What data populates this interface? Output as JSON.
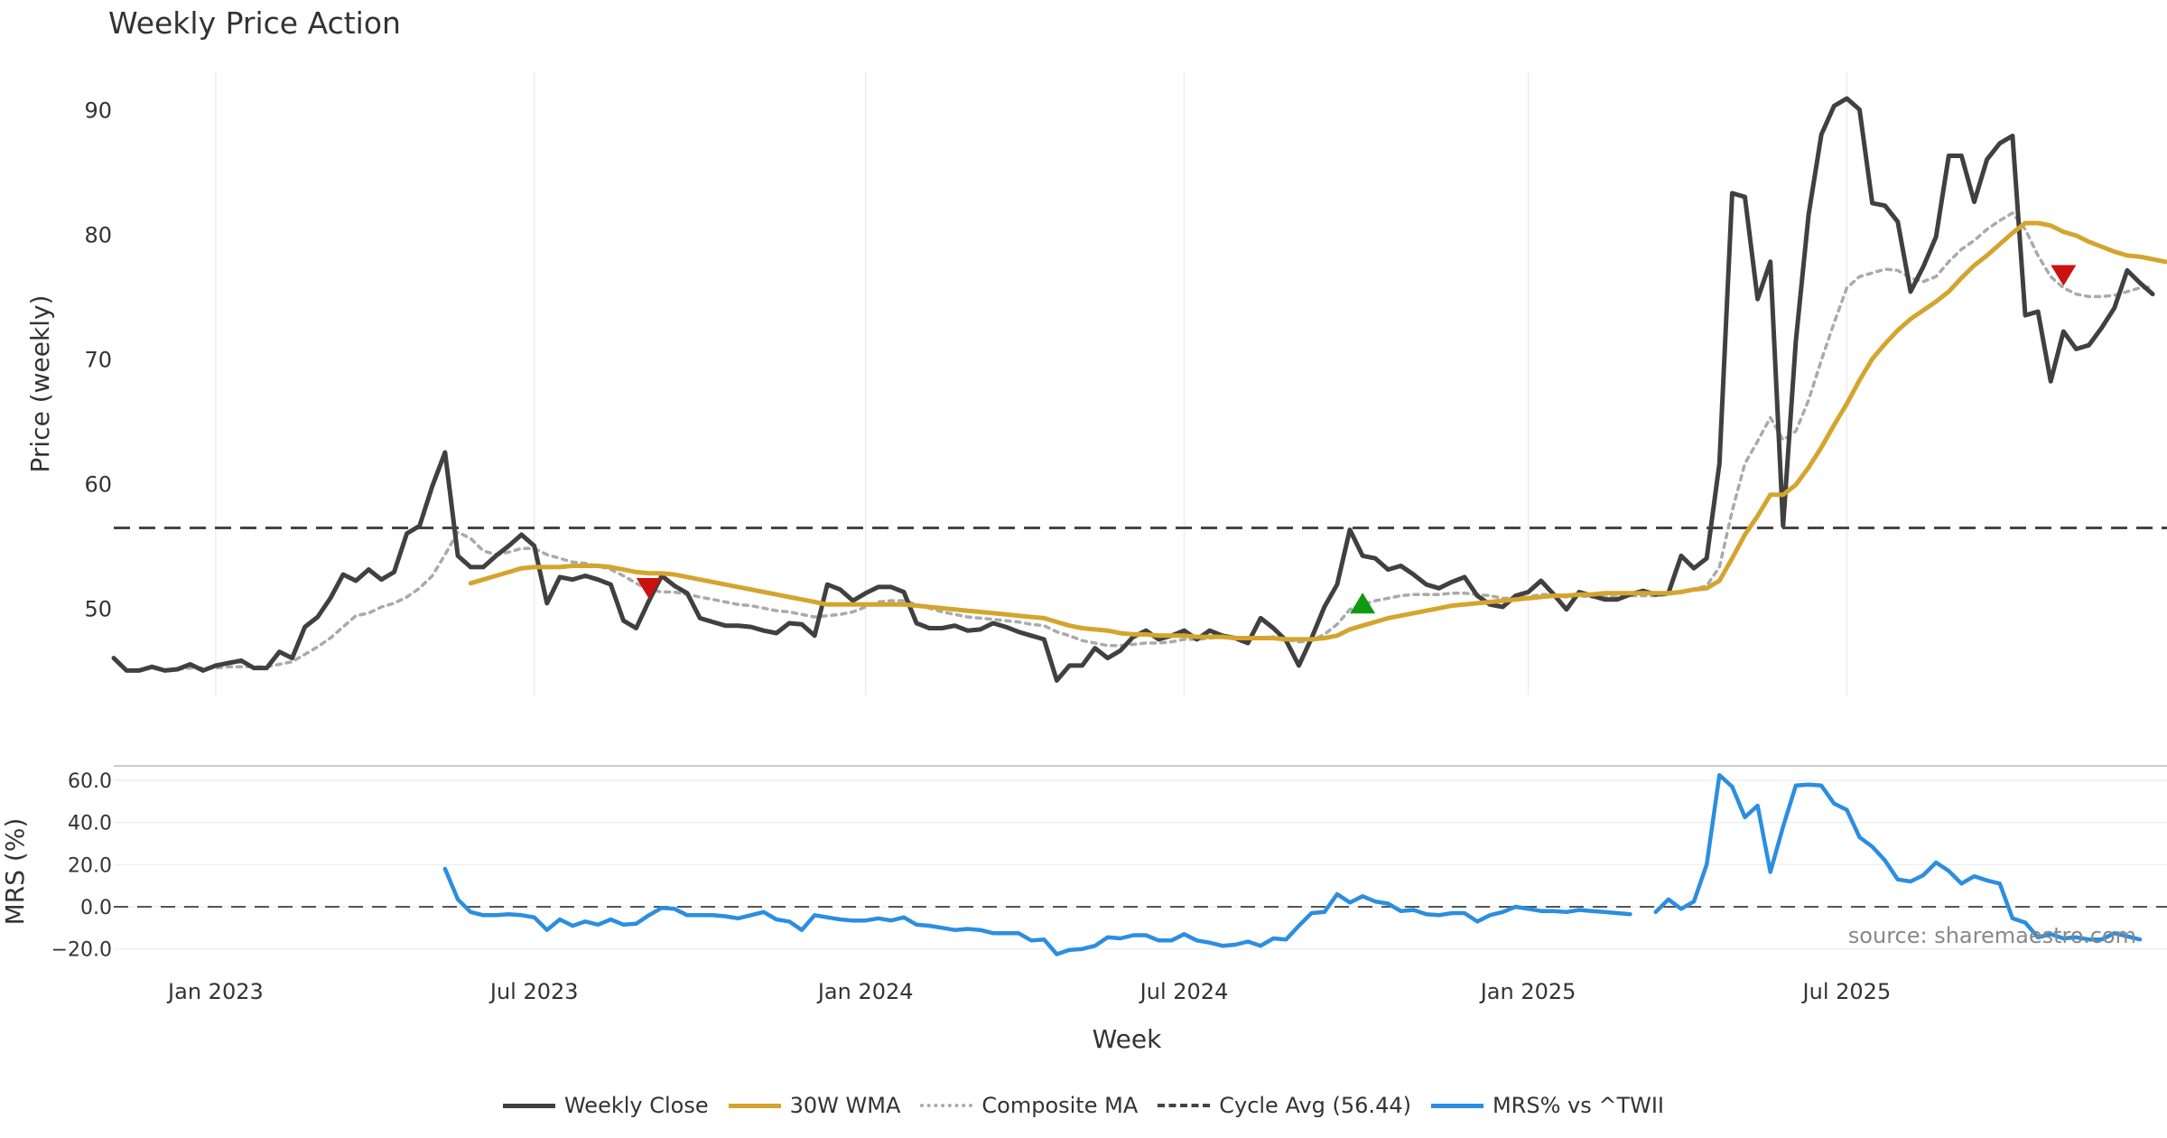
{
  "chart_data": [
    {
      "type": "line",
      "title": "Weekly Price Action",
      "xlabel": "",
      "ylabel": "Price (weekly)",
      "ylim": [
        43,
        93
      ],
      "yticks": [
        50,
        60,
        70,
        80,
        90
      ],
      "grid": true,
      "start_week": "2022-11-07",
      "week_count": 160,
      "series": [
        {
          "name": "Weekly Close",
          "color": "#404040",
          "style": "solid",
          "values": [
            46,
            45,
            45,
            45.3,
            45,
            45.1,
            45.5,
            45,
            45.4,
            45.6,
            45.8,
            45.2,
            45.2,
            46.5,
            46,
            48.5,
            49.3,
            50.8,
            52.7,
            52.2,
            53.1,
            52.3,
            52.9,
            56,
            56.6,
            59.8,
            62.5,
            54.2,
            53.3,
            53.3,
            54.2,
            55,
            55.9,
            55,
            50.4,
            52.5,
            52.3,
            52.6,
            52.3,
            51.9,
            49,
            48.4,
            50.6,
            52.6,
            51.8,
            51.2,
            49.2,
            48.9,
            48.6,
            48.6,
            48.5,
            48.2,
            48,
            48.8,
            48.7,
            47.8,
            51.9,
            51.5,
            50.6,
            51.2,
            51.7,
            51.7,
            51.3,
            48.8,
            48.4,
            48.4,
            48.6,
            48.2,
            48.3,
            48.8,
            48.5,
            48.1,
            47.8,
            47.5,
            44.2,
            45.4,
            45.4,
            46.8,
            46,
            46.6,
            47.7,
            48.2,
            47.5,
            47.8,
            48.2,
            47.5,
            48.2,
            47.8,
            47.6,
            47.2,
            49.2,
            48.4,
            47.4,
            45.4,
            47.6,
            50.1,
            51.9,
            56.3,
            54.2,
            54,
            53.1,
            53.4,
            52.7,
            51.9,
            51.6,
            52.1,
            52.5,
            51,
            50.3,
            50.1,
            51,
            51.3,
            52.2,
            51.1,
            49.9,
            51.3,
            51,
            50.7,
            50.7,
            51.1,
            51.4,
            51.1,
            51.2,
            54.2,
            53.2,
            54,
            61.6,
            83.3,
            83,
            74.8,
            77.8,
            56.6,
            71.4,
            81.6,
            88,
            90.3,
            90.9,
            90,
            82.5,
            82.3,
            81,
            75.4,
            77.4,
            79.8,
            86.3,
            86.3,
            82.6,
            86,
            87.3,
            87.9,
            73.5,
            73.8,
            68.2,
            72.2,
            70.8,
            71.1,
            72.5,
            74.1,
            77.1,
            76.1,
            75.2
          ]
        },
        {
          "name": "30W WMA",
          "color": "#d4a52e",
          "style": "solid",
          "values": [
            null,
            null,
            null,
            null,
            null,
            null,
            null,
            null,
            null,
            null,
            null,
            null,
            null,
            null,
            null,
            null,
            null,
            null,
            null,
            null,
            null,
            null,
            null,
            null,
            null,
            null,
            null,
            null,
            52,
            52.3,
            52.6,
            52.9,
            53.2,
            53.3,
            53.3,
            53.3,
            53.4,
            53.4,
            53.4,
            53.3,
            53.1,
            52.9,
            52.8,
            52.8,
            52.7,
            52.5,
            52.3,
            52.1,
            51.9,
            51.7,
            51.5,
            51.3,
            51.1,
            50.9,
            50.7,
            50.5,
            50.3,
            50.3,
            50.3,
            50.3,
            50.3,
            50.3,
            50.3,
            50.2,
            50.1,
            50,
            49.9,
            49.8,
            49.7,
            49.6,
            49.5,
            49.4,
            49.3,
            49.2,
            48.9,
            48.6,
            48.4,
            48.3,
            48.2,
            48,
            47.9,
            47.9,
            47.8,
            47.8,
            47.8,
            47.7,
            47.7,
            47.7,
            47.6,
            47.6,
            47.6,
            47.6,
            47.5,
            47.5,
            47.5,
            47.6,
            47.8,
            48.3,
            48.6,
            48.9,
            49.2,
            49.4,
            49.6,
            49.8,
            50,
            50.2,
            50.3,
            50.4,
            50.5,
            50.6,
            50.7,
            50.8,
            50.9,
            51,
            51,
            51.1,
            51.1,
            51.2,
            51.2,
            51.2,
            51.2,
            51.2,
            51.2,
            51.3,
            51.5,
            51.6,
            52.2,
            54,
            55.9,
            57.4,
            59.1,
            59.1,
            59.9,
            61.3,
            62.9,
            64.7,
            66.4,
            68.3,
            70,
            71.2,
            72.3,
            73.2,
            73.9,
            74.6,
            75.4,
            76.5,
            77.5,
            78.3,
            79.2,
            80.1,
            80.9,
            80.9,
            80.7,
            80.2,
            79.9,
            79.4,
            79,
            78.6,
            78.3,
            78.2,
            78,
            77.8
          ]
        },
        {
          "name": "Composite MA",
          "color": "#aaaaaa",
          "style": "dotted",
          "values": [
            null,
            null,
            null,
            null,
            null,
            45.1,
            45.2,
            45.2,
            45.2,
            45.3,
            45.3,
            45.3,
            45.3,
            45.5,
            45.7,
            46.3,
            46.9,
            47.6,
            48.5,
            49.4,
            49.6,
            50.1,
            50.4,
            50.9,
            51.6,
            52.6,
            54.3,
            56.1,
            55.6,
            54.6,
            54.3,
            54.5,
            54.8,
            54.8,
            54.3,
            54,
            53.7,
            53.6,
            53.4,
            53.1,
            52.6,
            52,
            51.5,
            51.3,
            51.3,
            51.1,
            50.9,
            50.7,
            50.5,
            50.3,
            50.2,
            50,
            49.8,
            49.7,
            49.5,
            49.3,
            49.4,
            49.5,
            49.7,
            50.1,
            50.5,
            50.6,
            50.6,
            50.3,
            50,
            49.7,
            49.5,
            49.3,
            49.2,
            49.1,
            49,
            48.9,
            48.7,
            48.6,
            48.1,
            47.8,
            47.4,
            47.2,
            47,
            47,
            47.1,
            47.2,
            47.2,
            47.3,
            47.5,
            47.5,
            47.6,
            47.7,
            47.6,
            47.5,
            47.6,
            47.7,
            47.5,
            47.3,
            47.4,
            47.9,
            48.7,
            49.9,
            50.3,
            50.6,
            50.8,
            51,
            51.1,
            51.1,
            51.1,
            51.2,
            51.2,
            51.1,
            51,
            50.8,
            50.8,
            50.9,
            51.1,
            51.1,
            50.9,
            51,
            50.9,
            50.9,
            50.9,
            51,
            51,
            51,
            51.1,
            51.3,
            51.5,
            51.8,
            53.3,
            57.8,
            61.6,
            63.4,
            65.3,
            63.5,
            64.2,
            66.7,
            69.9,
            72.9,
            75.7,
            76.6,
            76.9,
            77.2,
            77.1,
            76.5,
            76.2,
            76.6,
            77.8,
            78.8,
            79.5,
            80.4,
            81.1,
            81.7,
            80.4,
            78.3,
            76.6,
            75.7,
            75.2,
            75,
            75,
            75.1,
            75.4,
            75.7,
            75.8
          ]
        },
        {
          "name": "Cycle Avg (56.44)",
          "color": "#444444",
          "style": "dashed",
          "constant": 56.44
        }
      ],
      "markers": [
        {
          "type": "sell",
          "symbol": "triangle-down",
          "color": "#cc1111",
          "week": 42,
          "value": 51.7
        },
        {
          "type": "buy",
          "symbol": "triangle-up",
          "color": "#119911",
          "week": 98,
          "value": 50.3
        },
        {
          "type": "sell",
          "symbol": "triangle-down",
          "color": "#cc1111",
          "week": 153,
          "value": 76.8
        }
      ],
      "xticks": [
        {
          "label": "Jan 2023",
          "week": 8
        },
        {
          "label": "Jul 2023",
          "week": 33
        },
        {
          "label": "Jan 2024",
          "week": 59
        },
        {
          "label": "Jul 2024",
          "week": 84
        },
        {
          "label": "Jan 2025",
          "week": 111
        },
        {
          "label": "Jul 2025",
          "week": 136
        }
      ]
    },
    {
      "type": "line",
      "xlabel": "Week",
      "ylabel": "MRS (%)",
      "ylim": [
        -24,
        66
      ],
      "yticks": [
        -20.0,
        0.0,
        20.0,
        40.0,
        60.0
      ],
      "ytick_labels": [
        "−20.0",
        "0.0",
        "20.0",
        "40.0",
        "60.0"
      ],
      "zero_line": "dashed",
      "series": [
        {
          "name": "MRS% vs ^TWII",
          "color": "#2b8ee0",
          "style": "solid",
          "values": [
            null,
            null,
            null,
            null,
            null,
            null,
            null,
            null,
            null,
            null,
            null,
            null,
            null,
            null,
            null,
            null,
            null,
            null,
            null,
            null,
            null,
            null,
            null,
            null,
            null,
            null,
            18,
            3.5,
            -2.5,
            -4,
            -4,
            -3.5,
            -4,
            -5,
            -11,
            -6,
            -9,
            -7,
            -8.5,
            -6,
            -8.5,
            -8,
            -4,
            -0.5,
            -1,
            -4,
            -4,
            -4,
            -4.5,
            -5.5,
            -4,
            -2.5,
            -6,
            -7,
            -11,
            -4,
            -5,
            -6,
            -6.5,
            -6.5,
            -5.5,
            -6.5,
            -5,
            -8.5,
            -9,
            -10,
            -11,
            -10.5,
            -11,
            -12.5,
            -12.5,
            -12.5,
            -16,
            -15.5,
            -22.5,
            -20.5,
            -20,
            -18.5,
            -14.5,
            -15,
            -13.5,
            -13.5,
            -16,
            -16,
            -13,
            -16,
            -17,
            -18.5,
            -18,
            -16.5,
            -18.5,
            -15,
            -15.5,
            -9,
            -3,
            -2.5,
            6,
            2,
            5,
            2.5,
            1.5,
            -2,
            -1.5,
            -3.5,
            -4,
            -3,
            -3,
            -7,
            -4,
            -2.5,
            0,
            -1,
            -2,
            -2,
            -2.5,
            -1.5,
            -2,
            -2.5,
            -3,
            -3.5,
            null,
            -2.5,
            3.5,
            -1,
            2.5,
            20,
            62.5,
            57,
            42.5,
            48,
            16.5,
            38,
            57.5,
            58,
            57.5,
            49,
            46,
            33,
            28.5,
            22,
            13,
            12,
            15,
            21,
            17,
            11,
            14.5,
            12.5,
            11,
            -5.5,
            -7.5,
            -14.5,
            -13,
            -15,
            -14.5,
            -15.5,
            -15.5,
            -12.5,
            -14,
            -15.5
          ]
        }
      ],
      "annotation": "source: sharemaestro.com"
    }
  ],
  "legend": [
    {
      "label": "Weekly Close",
      "color": "#404040",
      "style": "solid"
    },
    {
      "label": "30W WMA",
      "color": "#d4a52e",
      "style": "solid"
    },
    {
      "label": "Composite MA",
      "color": "#aaaaaa",
      "style": "dotted"
    },
    {
      "label": "Cycle Avg (56.44)",
      "color": "#444444",
      "style": "dashed"
    },
    {
      "label": "MRS% vs ^TWII",
      "color": "#2b8ee0",
      "style": "solid"
    }
  ]
}
